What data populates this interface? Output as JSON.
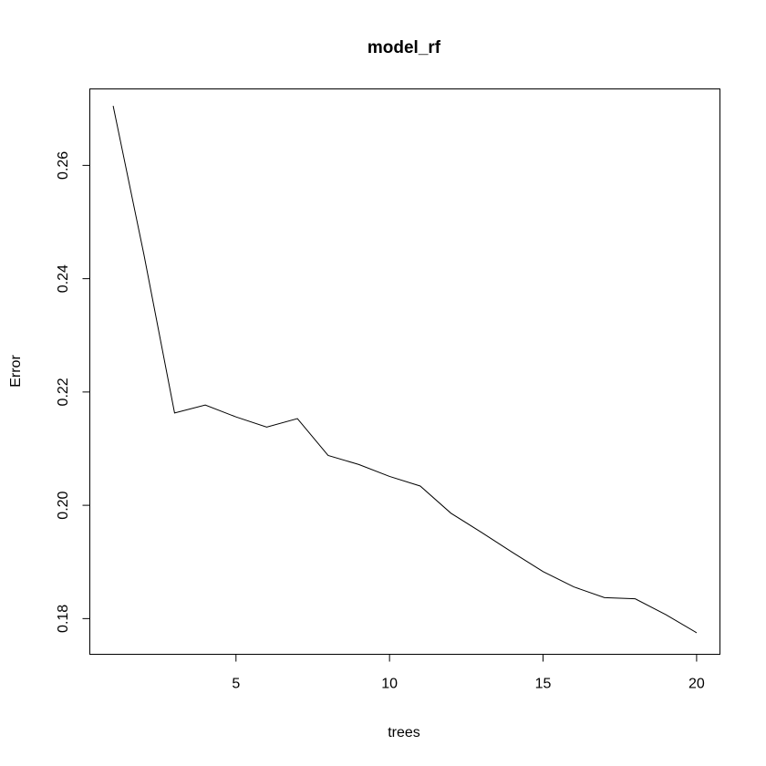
{
  "chart_data": {
    "type": "line",
    "title": "model_rf",
    "xlabel": "trees",
    "ylabel": "Error",
    "xlim": [
      0.24,
      20.76
    ],
    "ylim": [
      0.1737,
      0.2735
    ],
    "x_ticks": [
      5,
      10,
      15,
      20
    ],
    "y_ticks": [
      0.18,
      0.2,
      0.22,
      0.24,
      0.26
    ],
    "x_tick_labels": [
      "5",
      "10",
      "15",
      "20"
    ],
    "y_tick_labels": [
      "0.18",
      "0.20",
      "0.22",
      "0.24",
      "0.26"
    ],
    "grid": false,
    "series": [
      {
        "x": [
          1,
          2,
          3,
          4,
          5,
          6,
          7,
          8,
          9,
          10,
          11,
          12,
          13,
          14,
          15,
          16,
          17,
          18,
          19,
          20
        ],
        "values": [
          0.2705,
          0.2443,
          0.2163,
          0.2177,
          0.2156,
          0.2138,
          0.2153,
          0.2088,
          0.2072,
          0.2051,
          0.2034,
          0.1986,
          0.1952,
          0.1917,
          0.1883,
          0.1856,
          0.1837,
          0.1835,
          0.1807,
          0.1775
        ],
        "color": "#000000"
      }
    ]
  }
}
